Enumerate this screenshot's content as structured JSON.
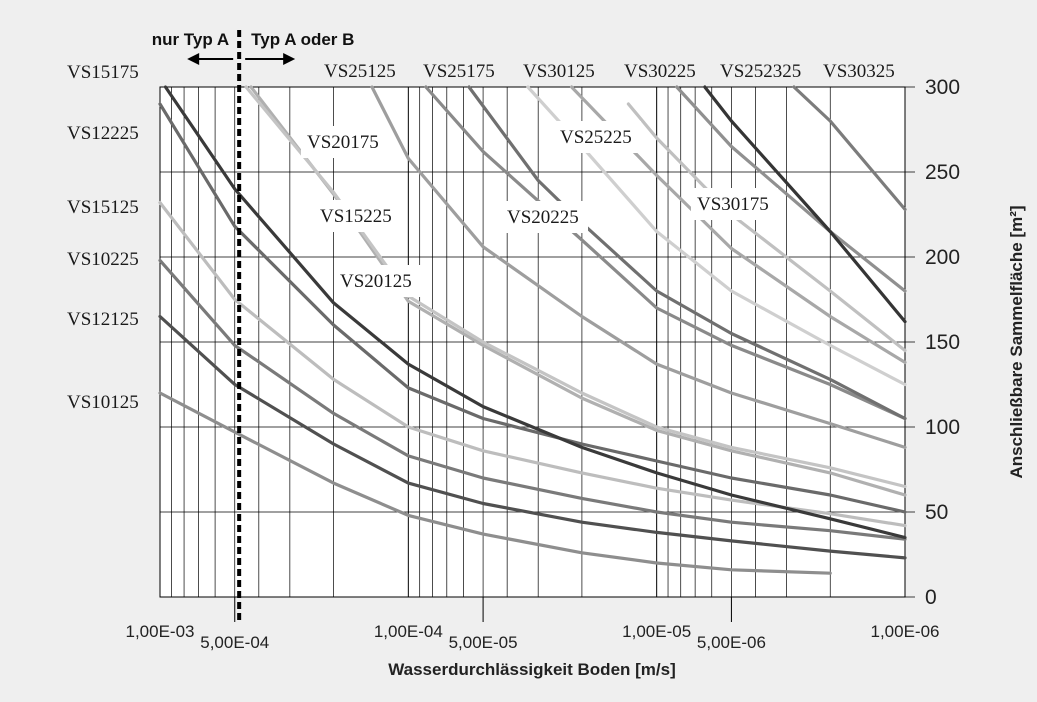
{
  "chart_data": {
    "type": "line",
    "title": "",
    "xlabel": "Wasserdurchlässigkeit Boden [m/s]",
    "ylabel": "Anschließbare Sammelfläche [m²]",
    "x_scale": "log",
    "x_reversed": true,
    "xlim": [
      0.001,
      1e-06
    ],
    "ylim": [
      0,
      300
    ],
    "grid": true,
    "x_ticks": [
      {
        "value": 0.001,
        "label": "1,00E-03"
      },
      {
        "value": 0.0005,
        "label": "5,00E-04"
      },
      {
        "value": 0.0001,
        "label": "1,00E-04"
      },
      {
        "value": 5e-05,
        "label": "5,00E-05"
      },
      {
        "value": 1e-05,
        "label": "1,00E-05"
      },
      {
        "value": 5e-06,
        "label": "5,00E-06"
      },
      {
        "value": 1e-06,
        "label": "1,00E-06"
      }
    ],
    "y_ticks": [
      {
        "value": 0,
        "label": "0"
      },
      {
        "value": 50,
        "label": "50"
      },
      {
        "value": 100,
        "label": "100"
      },
      {
        "value": 150,
        "label": "150"
      },
      {
        "value": 200,
        "label": "200"
      },
      {
        "value": 250,
        "label": "250"
      },
      {
        "value": 300,
        "label": "300"
      }
    ],
    "divider": {
      "x": 0.00048,
      "left_label": "nur Typ A",
      "right_label": "Typ A oder B"
    },
    "series": [
      {
        "name": "VS10125",
        "color": "#8e8e8e",
        "x": [
          0.001,
          0.0005,
          0.0002,
          0.0001,
          5e-05,
          2e-05,
          1e-05,
          5e-06,
          2e-06
        ],
        "y": [
          120,
          97,
          67,
          48,
          37,
          26,
          20,
          16,
          14
        ]
      },
      {
        "name": "VS12125",
        "color": "#505050",
        "x": [
          0.001,
          0.0005,
          0.0002,
          0.0001,
          5e-05,
          2e-05,
          1e-05,
          5e-06,
          2e-06,
          1e-06
        ],
        "y": [
          165,
          125,
          90,
          67,
          55,
          44,
          38,
          33,
          27,
          23
        ]
      },
      {
        "name": "VS10225",
        "color": "#7a7a7a",
        "x": [
          0.001,
          0.0005,
          0.0002,
          0.0001,
          5e-05,
          2e-05,
          1e-05,
          5e-06,
          2e-06,
          1e-06
        ],
        "y": [
          198,
          148,
          108,
          83,
          70,
          58,
          50,
          44,
          39,
          34
        ]
      },
      {
        "name": "VS15125",
        "color": "#bdbdbd",
        "x": [
          0.001,
          0.0005,
          0.0002,
          0.0001,
          5e-05,
          2e-05,
          1e-05,
          5e-06,
          2e-06,
          1e-06
        ],
        "y": [
          232,
          175,
          128,
          100,
          86,
          73,
          64,
          57,
          49,
          42
        ]
      },
      {
        "name": "VS12225",
        "color": "#6a6a6a",
        "x": [
          0.001,
          0.0005,
          0.0002,
          0.0001,
          5e-05,
          2e-05,
          1e-05,
          5e-06,
          2e-06,
          1e-06
        ],
        "y": [
          290,
          218,
          160,
          123,
          105,
          90,
          80,
          70,
          60,
          50
        ]
      },
      {
        "name": "VS15175",
        "color": "#3a3a3a",
        "x": [
          0.00095,
          0.0005,
          0.0002,
          0.0001,
          5e-05,
          2e-05,
          1e-05,
          5e-06,
          2e-06,
          1e-06
        ],
        "y": [
          300,
          240,
          173,
          137,
          112,
          88,
          73,
          60,
          46,
          35
        ]
      },
      {
        "name": "VS20125",
        "color": "#b0b0b0",
        "x": [
          0.00043,
          0.0002,
          0.0001,
          5e-05,
          2e-05,
          1e-05,
          5e-06,
          2e-06,
          1e-06
        ],
        "y": [
          300,
          237,
          174,
          148,
          117,
          98,
          86,
          73,
          60
        ]
      },
      {
        "name": "VS15225",
        "color": "#c4c4c4",
        "x": [
          0.00045,
          0.0002,
          0.0001,
          5e-05,
          2e-05,
          1e-05,
          5e-06,
          2e-06,
          1e-06
        ],
        "y": [
          300,
          238,
          177,
          150,
          120,
          100,
          88,
          76,
          65
        ]
      },
      {
        "name": "VS20175",
        "color": "#9e9e9e",
        "x": [
          0.00014,
          0.0001,
          5e-05,
          2e-05,
          1e-05,
          5e-06,
          2e-06,
          1e-06
        ],
        "y": [
          300,
          258,
          206,
          165,
          137,
          120,
          102,
          88
        ]
      },
      {
        "name": "VS25125",
        "color": "#8a8a8a",
        "x": [
          8.5e-05,
          5e-05,
          2e-05,
          1e-05,
          5e-06,
          2e-06,
          1e-06
        ],
        "y": [
          300,
          262,
          210,
          170,
          148,
          125,
          105
        ]
      },
      {
        "name": "VS20225",
        "color": "#707070",
        "x": [
          5.7e-05,
          3e-05,
          2e-05,
          1e-05,
          5e-06,
          2e-06,
          1e-06
        ],
        "y": [
          300,
          245,
          220,
          180,
          155,
          128,
          105
        ]
      },
      {
        "name": "VS25175",
        "color": "#cfcfcf",
        "x": [
          3.3e-05,
          2e-05,
          1e-05,
          5e-06,
          2e-06,
          1e-06
        ],
        "y": [
          300,
          265,
          215,
          180,
          148,
          125
        ]
      },
      {
        "name": "VS30125",
        "color": "#a8a8a8",
        "x": [
          2.2e-05,
          1e-05,
          5e-06,
          2e-06,
          1e-06
        ],
        "y": [
          300,
          248,
          205,
          165,
          138
        ]
      },
      {
        "name": "VS25225",
        "color": "#c0c0c0",
        "x": [
          1.3e-05,
          1e-05,
          5e-06,
          2e-06,
          1e-06
        ],
        "y": [
          290,
          270,
          225,
          180,
          145
        ]
      },
      {
        "name": "VS30175",
        "color": "#909090",
        "x": [
          8.3e-06,
          5e-06,
          2e-06,
          1e-06
        ],
        "y": [
          300,
          265,
          215,
          180
        ]
      },
      {
        "name": "VS30225",
        "color": "#353535",
        "x": [
          6.4e-06,
          5e-06,
          2e-06,
          1e-06
        ],
        "y": [
          300,
          280,
          215,
          162
        ]
      },
      {
        "name": "VS30325",
        "color": "#7c7c7c",
        "x": [
          2.8e-06,
          2e-06,
          1e-06
        ],
        "y": [
          300,
          280,
          228
        ]
      }
    ],
    "labels": [
      {
        "text": "VS15175",
        "boxed": false
      },
      {
        "text": "VS12225",
        "boxed": false
      },
      {
        "text": "VS15125",
        "boxed": false
      },
      {
        "text": "VS10225",
        "boxed": false
      },
      {
        "text": "VS12125",
        "boxed": false
      },
      {
        "text": "VS10125",
        "boxed": false
      },
      {
        "text": "VS25125",
        "boxed": false
      },
      {
        "text": "VS25175",
        "boxed": false
      },
      {
        "text": "VS30125",
        "boxed": false
      },
      {
        "text": "VS30225",
        "boxed": false
      },
      {
        "text": "VS252325",
        "boxed": false
      },
      {
        "text": "VS30325",
        "boxed": false
      },
      {
        "text": "VS20175",
        "boxed": true
      },
      {
        "text": "VS15225",
        "boxed": true
      },
      {
        "text": "VS20125",
        "boxed": true
      },
      {
        "text": "VS20225",
        "boxed": true
      },
      {
        "text": "VS25225",
        "boxed": true
      },
      {
        "text": "VS30175",
        "boxed": true
      }
    ]
  }
}
